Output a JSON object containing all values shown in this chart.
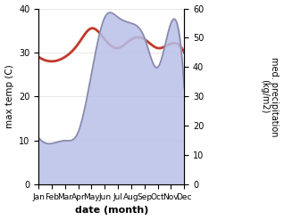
{
  "months": [
    "Jan",
    "Feb",
    "Mar",
    "Apr",
    "May",
    "Jun",
    "Jul",
    "Aug",
    "Sep",
    "Oct",
    "Nov",
    "Dec"
  ],
  "temperature": [
    29,
    28,
    29,
    32,
    35.5,
    33,
    31,
    33,
    33,
    31,
    32,
    30
  ],
  "precipitation": [
    16,
    14,
    15,
    18,
    38,
    57,
    57,
    55,
    50,
    40,
    55,
    33
  ],
  "temp_color": "#c0392b",
  "precip_line_color": "#8888aa",
  "precip_fill_color": "#b8c0e8",
  "temp_ylim": [
    0,
    40
  ],
  "precip_ylim": [
    0,
    60
  ],
  "xlabel": "date (month)",
  "ylabel_left": "max temp (C)",
  "ylabel_right": "med. precipitation\n(kg/m2)",
  "figsize": [
    3.18,
    2.47
  ],
  "dpi": 100
}
